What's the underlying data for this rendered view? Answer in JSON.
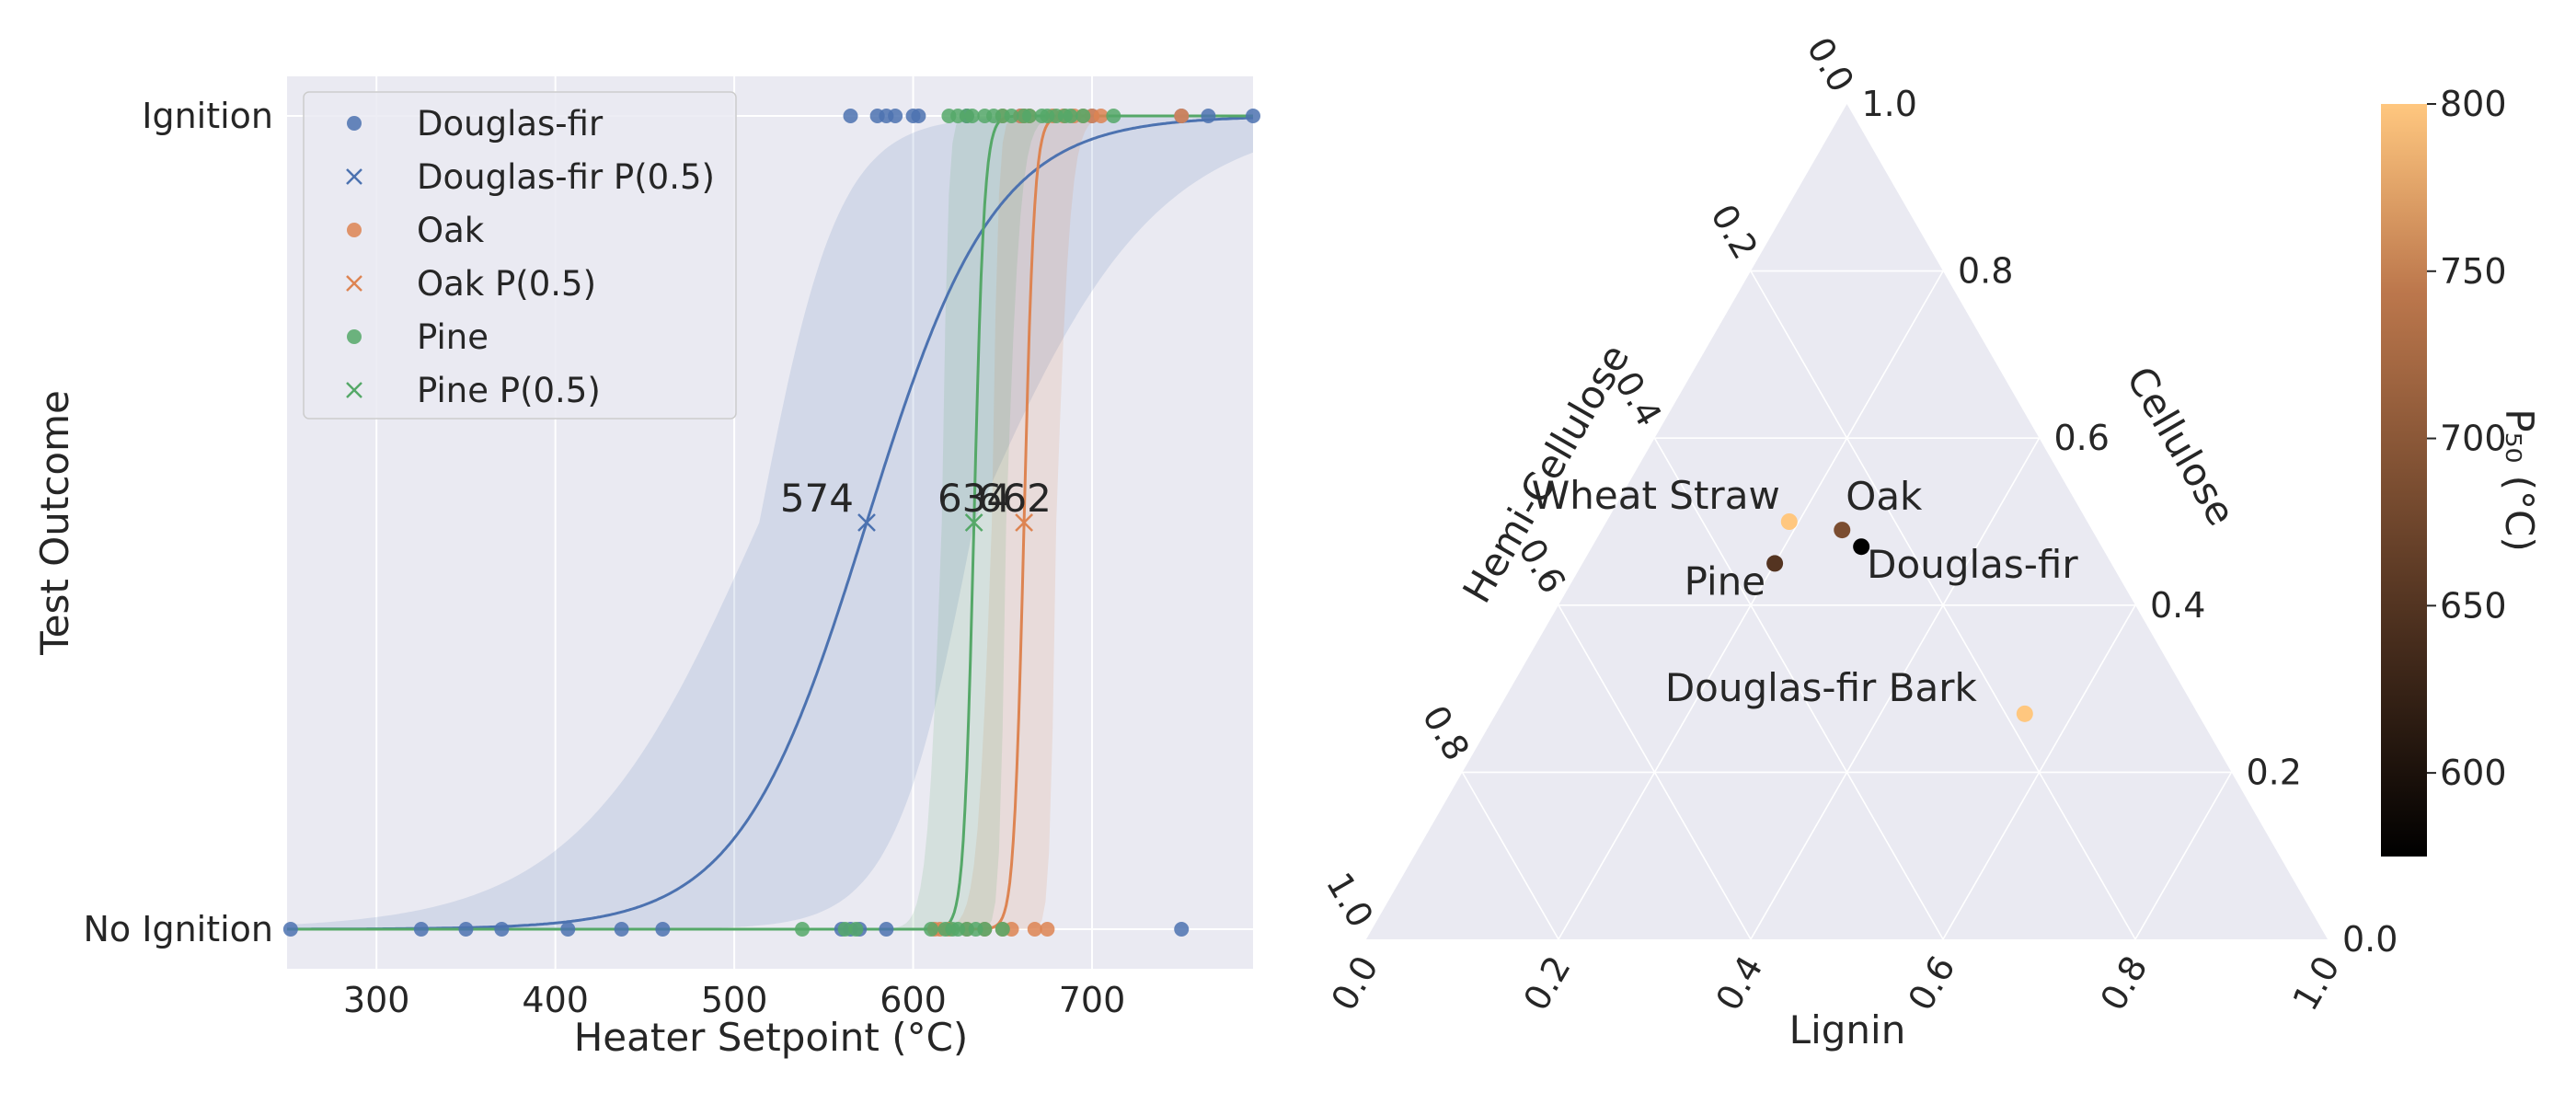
{
  "chart_data": [
    {
      "type": "scatter",
      "xlabel": "Heater Setpoint (°C)",
      "ylabel": "Test Outcome",
      "xlim": [
        250,
        790
      ],
      "xticks": [
        300,
        400,
        500,
        600,
        700
      ],
      "ytick_labels": [
        "No Ignition",
        "Ignition"
      ],
      "grid": true,
      "legend": {
        "placement": "top-left",
        "entries": [
          "Douglas-fir",
          "Douglas-fir P(0.5)",
          "Oak",
          "Oak P(0.5)",
          "Pine",
          "Pine P(0.5)"
        ]
      },
      "colors": {
        "Douglas-fir": "#4c72b0",
        "Oak": "#dd8452",
        "Pine": "#55a868",
        "background": "#eaeaf2"
      },
      "series": [
        {
          "name": "Douglas-fir",
          "ignition_x": [
            565,
            580,
            585,
            590,
            600,
            603,
            630,
            660,
            700,
            750,
            765,
            790
          ],
          "no_ignition_x": [
            252,
            325,
            350,
            370,
            407,
            437,
            460,
            560,
            565,
            570,
            585,
            750
          ],
          "p50": 574,
          "slope": 0.028
        },
        {
          "name": "Oak",
          "ignition_x": [
            650,
            660,
            662,
            665,
            678,
            684,
            690,
            695,
            700,
            705,
            750
          ],
          "no_ignition_x": [
            612,
            615,
            620,
            630,
            640,
            650,
            655,
            668,
            675
          ],
          "p50": 662,
          "slope": 0.35
        },
        {
          "name": "Pine",
          "ignition_x": [
            620,
            625,
            630,
            633,
            640,
            645,
            650,
            655,
            662,
            665,
            672,
            675,
            680,
            685,
            688,
            695,
            712
          ],
          "no_ignition_x": [
            538,
            562,
            568,
            610,
            618,
            622,
            625,
            630,
            635,
            640,
            650
          ],
          "p50": 634,
          "slope": 0.35
        }
      ],
      "annotations": [
        "574",
        "634",
        "662"
      ]
    },
    {
      "type": "scatter",
      "subtype": "ternary",
      "axes": {
        "bottom": "Lignin",
        "left": "Hemi-Cellulose",
        "right": "Cellulose"
      },
      "tick_labels": [
        "0.0",
        "0.2",
        "0.4",
        "0.6",
        "0.8",
        "1.0"
      ],
      "colorbar": {
        "label": "P₅₀ (°C)",
        "ticks": [
          600,
          650,
          700,
          750,
          800
        ],
        "range": [
          575,
          800
        ],
        "cmap": "copper"
      },
      "points": [
        {
          "name": "Wheat Straw",
          "lignin": 0.19,
          "cellulose": 0.5,
          "hemicellulose": 0.31,
          "p50": 800
        },
        {
          "name": "Oak",
          "lignin": 0.25,
          "cellulose": 0.49,
          "hemicellulose": 0.26,
          "p50": 662
        },
        {
          "name": "Douglas-fir",
          "lignin": 0.28,
          "cellulose": 0.47,
          "hemicellulose": 0.25,
          "p50": 574
        },
        {
          "name": "Pine",
          "lignin": 0.2,
          "cellulose": 0.45,
          "hemicellulose": 0.35,
          "p50": 634
        },
        {
          "name": "Douglas-fir Bark",
          "lignin": 0.55,
          "cellulose": 0.27,
          "hemicellulose": 0.18,
          "p50": 800
        }
      ]
    }
  ]
}
